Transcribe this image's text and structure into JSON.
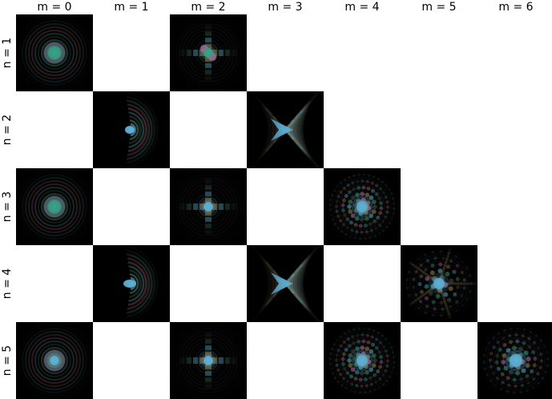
{
  "columns": [
    {
      "label": "m = 0"
    },
    {
      "label": "m = 1"
    },
    {
      "label": "m = 2"
    },
    {
      "label": "m = 3"
    },
    {
      "label": "m = 4"
    },
    {
      "label": "m = 5"
    },
    {
      "label": "m = 6"
    }
  ],
  "rows": [
    {
      "label": "n = 1"
    },
    {
      "label": "n = 2"
    },
    {
      "label": "n = 3"
    },
    {
      "label": "n = 4"
    },
    {
      "label": "n = 5"
    }
  ],
  "patterns": [
    {
      "n": 1,
      "m": 0,
      "style": "rings",
      "center": "teal-green"
    },
    {
      "n": 1,
      "m": 2,
      "style": "cross",
      "center": "teal-pink"
    },
    {
      "n": 2,
      "m": 1,
      "style": "arcs",
      "center": "light-blue"
    },
    {
      "n": 2,
      "m": 3,
      "style": "three-fold",
      "center": "light-blue"
    },
    {
      "n": 3,
      "m": 0,
      "style": "rings",
      "center": "teal-blue"
    },
    {
      "n": 3,
      "m": 2,
      "style": "cross",
      "center": "light-blue"
    },
    {
      "n": 3,
      "m": 4,
      "style": "lattice",
      "center": "light-blue"
    },
    {
      "n": 4,
      "m": 1,
      "style": "arcs",
      "center": "light-blue"
    },
    {
      "n": 4,
      "m": 3,
      "style": "three-fold",
      "center": "light-blue"
    },
    {
      "n": 4,
      "m": 5,
      "style": "five-fold",
      "center": "light-blue"
    },
    {
      "n": 5,
      "m": 0,
      "style": "rings",
      "center": "light-blue"
    },
    {
      "n": 5,
      "m": 2,
      "style": "cross",
      "center": "light-blue"
    },
    {
      "n": 5,
      "m": 4,
      "style": "lattice",
      "center": "light-blue"
    },
    {
      "n": 5,
      "m": 6,
      "style": "six-fold",
      "center": "light-blue"
    }
  ],
  "colors": {
    "background": "#000000",
    "teal": "#3aa38c",
    "blue": "#5fb2d8",
    "pink": "#c46aa8",
    "orange": "#a8864a",
    "green": "#4a8f6a",
    "gray": "#4a4a4a"
  }
}
